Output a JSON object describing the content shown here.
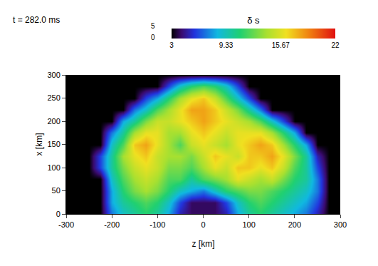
{
  "chart_data": {
    "type": "heatmap",
    "annotation": "t = 282.0 ms",
    "x_label": "z [km]",
    "y_label": "x [km]",
    "xlim": [
      -300,
      300
    ],
    "xticks": [
      -300,
      -200,
      -100,
      0,
      100,
      200,
      300
    ],
    "ylim": [
      0,
      300
    ],
    "yticks": [
      0,
      50,
      100,
      150,
      200,
      250,
      300
    ],
    "grid": false,
    "x": [
      -300,
      -275,
      -250,
      -225,
      -200,
      -175,
      -150,
      -125,
      -100,
      -75,
      -50,
      -25,
      0,
      25,
      50,
      75,
      100,
      125,
      150,
      175,
      200,
      225,
      250,
      275,
      300
    ],
    "y": [
      0,
      25,
      50,
      75,
      100,
      125,
      150,
      175,
      200,
      225,
      250,
      275,
      300
    ],
    "cells": [
      [
        3,
        3,
        3,
        3,
        7,
        9,
        10,
        11,
        10,
        8,
        5,
        4,
        4,
        4,
        5,
        8,
        10,
        11,
        10,
        9,
        8,
        7,
        5,
        3,
        3
      ],
      [
        3,
        3,
        3,
        3,
        8,
        10,
        11,
        12,
        11,
        9,
        6,
        4,
        4,
        4,
        6,
        9,
        11,
        12,
        11,
        10,
        9,
        8,
        6,
        3,
        3
      ],
      [
        3,
        3,
        3,
        3,
        8,
        11,
        13,
        14,
        13,
        11,
        9,
        8,
        7,
        9,
        11,
        12,
        13,
        13,
        12,
        11,
        10,
        9,
        7,
        3,
        3
      ],
      [
        3,
        3,
        3,
        3,
        9,
        12,
        14,
        15,
        14,
        12,
        12,
        10,
        12,
        13,
        14,
        16,
        15,
        14,
        15,
        13,
        11,
        10,
        7,
        3,
        3
      ],
      [
        3,
        3,
        3,
        6,
        10,
        13,
        15,
        16,
        15,
        13,
        13,
        12,
        14,
        16,
        15,
        17,
        17,
        16,
        17,
        15,
        12,
        10,
        6,
        3,
        3
      ],
      [
        3,
        3,
        3,
        6,
        10,
        14,
        16,
        17,
        15,
        14,
        14,
        13,
        15,
        17,
        16,
        15,
        17,
        17,
        18,
        16,
        13,
        10,
        5,
        3,
        3
      ],
      [
        3,
        3,
        3,
        3,
        9,
        12,
        17,
        18,
        16,
        14,
        12,
        15,
        16,
        15,
        14,
        16,
        17,
        18,
        17,
        14,
        11,
        8,
        3,
        3,
        3
      ],
      [
        3,
        3,
        3,
        3,
        7,
        10,
        14,
        16,
        16,
        14,
        14,
        16,
        17,
        16,
        15,
        16,
        16,
        16,
        14,
        11,
        8,
        3,
        3,
        3,
        3
      ],
      [
        3,
        3,
        3,
        3,
        3,
        8,
        10,
        13,
        15,
        15,
        16,
        17,
        18,
        17,
        16,
        15,
        14,
        12,
        9,
        6,
        3,
        3,
        3,
        3,
        3
      ],
      [
        3,
        3,
        3,
        3,
        3,
        3,
        7,
        9,
        12,
        14,
        16,
        18,
        18,
        17,
        15,
        13,
        10,
        7,
        3,
        3,
        3,
        3,
        3,
        3,
        3
      ],
      [
        3,
        3,
        3,
        3,
        3,
        3,
        3,
        6,
        8,
        11,
        14,
        16,
        17,
        15,
        12,
        9,
        6,
        3,
        3,
        3,
        3,
        3,
        3,
        3,
        3
      ],
      [
        3,
        3,
        3,
        3,
        3,
        3,
        3,
        3,
        3,
        6,
        9,
        11,
        12,
        11,
        9,
        6,
        3,
        3,
        3,
        3,
        3,
        3,
        3,
        3,
        3
      ],
      [
        3,
        3,
        3,
        3,
        3,
        3,
        3,
        3,
        3,
        3,
        3,
        3,
        3,
        3,
        3,
        3,
        3,
        3,
        3,
        3,
        3,
        3,
        3,
        3,
        3
      ]
    ],
    "colorbar_title": "δ s",
    "colorbar_range": [
      3,
      22
    ],
    "colorbar_ticks": [
      3,
      9.33,
      15.67,
      22
    ],
    "colorbar_side_labels": [
      0,
      5
    ]
  }
}
